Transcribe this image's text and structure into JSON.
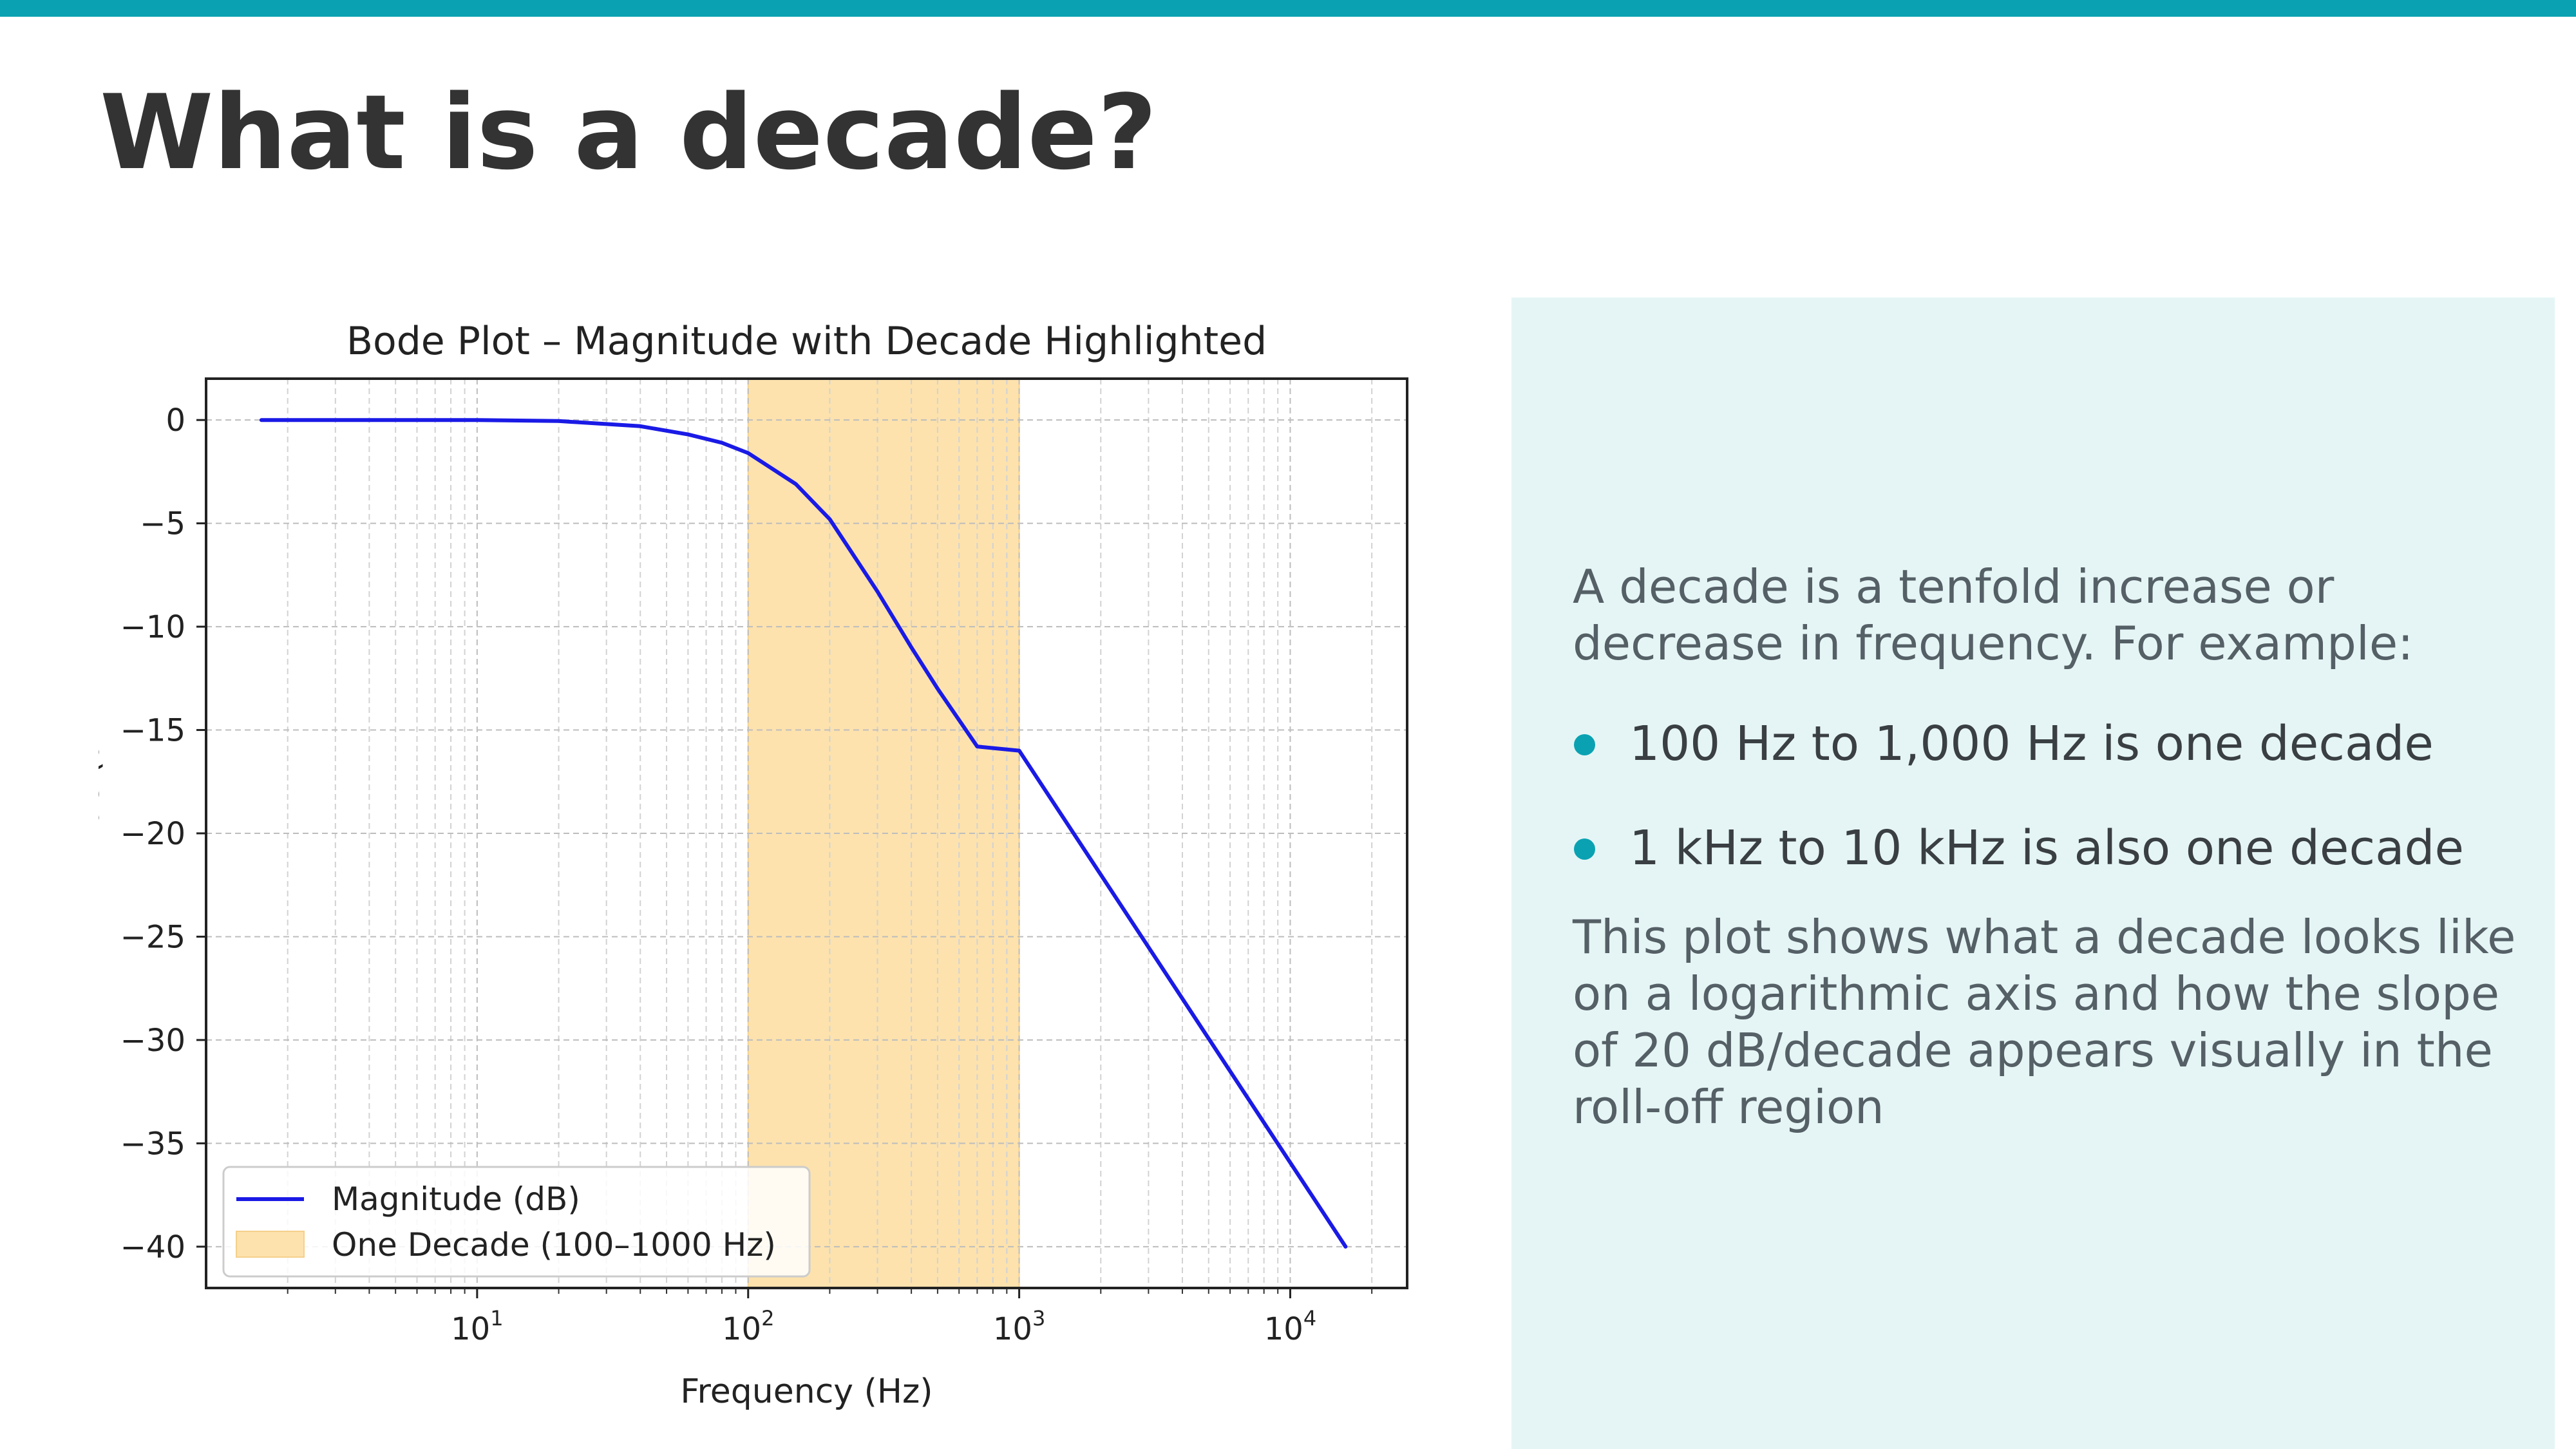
{
  "slide": {
    "title": "What is a decade?",
    "accent_color": "#0aa2b2",
    "panel_color": "#e5f5f5"
  },
  "panel": {
    "intro": "A decade is a tenfold increase or decrease in frequency. For example:",
    "bullets": [
      "100 Hz to 1,000 Hz is one decade",
      "1 kHz to 10 kHz is also one decade"
    ],
    "conclusion": "This plot shows what a decade looks like on a logarithmic axis and how the slope of 20 dB/decade appears visually in the roll-off region"
  },
  "chart_data": {
    "type": "line",
    "title": "Bode Plot – Magnitude with Decade Highlighted",
    "xlabel": "Frequency (Hz)",
    "ylabel": "Magnitude (dB)",
    "x_scale": "log",
    "xlim": [
      1,
      27000
    ],
    "ylim": [
      -42,
      2
    ],
    "x_ticks": [
      {
        "value": 10,
        "base": "10",
        "exp": "1"
      },
      {
        "value": 100,
        "base": "10",
        "exp": "2"
      },
      {
        "value": 1000,
        "base": "10",
        "exp": "3"
      },
      {
        "value": 10000,
        "base": "10",
        "exp": "4"
      }
    ],
    "y_ticks": [
      {
        "value": 0,
        "label": "0"
      },
      {
        "value": -5,
        "label": "−5"
      },
      {
        "value": -10,
        "label": "−10"
      },
      {
        "value": -15,
        "label": "−15"
      },
      {
        "value": -20,
        "label": "−20"
      },
      {
        "value": -25,
        "label": "−25"
      },
      {
        "value": -30,
        "label": "−30"
      },
      {
        "value": -35,
        "label": "−35"
      },
      {
        "value": -40,
        "label": "−40"
      }
    ],
    "grid": true,
    "legend_position": "lower-left",
    "series": [
      {
        "name": "Magnitude (dB)",
        "color": "#1a1ae6",
        "x": [
          1.6,
          5,
          10,
          20,
          40,
          60,
          80,
          100,
          150,
          200,
          300,
          400,
          500,
          700,
          1000,
          2000,
          4000,
          8000,
          16000
        ],
        "y": [
          0,
          0,
          0,
          -0.05,
          -0.3,
          -0.7,
          -1.1,
          -1.6,
          -3.1,
          -4.8,
          -8.3,
          -11.0,
          -13.0,
          -15.8,
          -16.0,
          -22.0,
          -28.0,
          -34.0,
          -40.0
        ]
      }
    ],
    "highlight": {
      "name": "One Decade (100–1000 Hz)",
      "x_start": 100,
      "x_end": 1000,
      "color": "#fde2ad"
    }
  }
}
